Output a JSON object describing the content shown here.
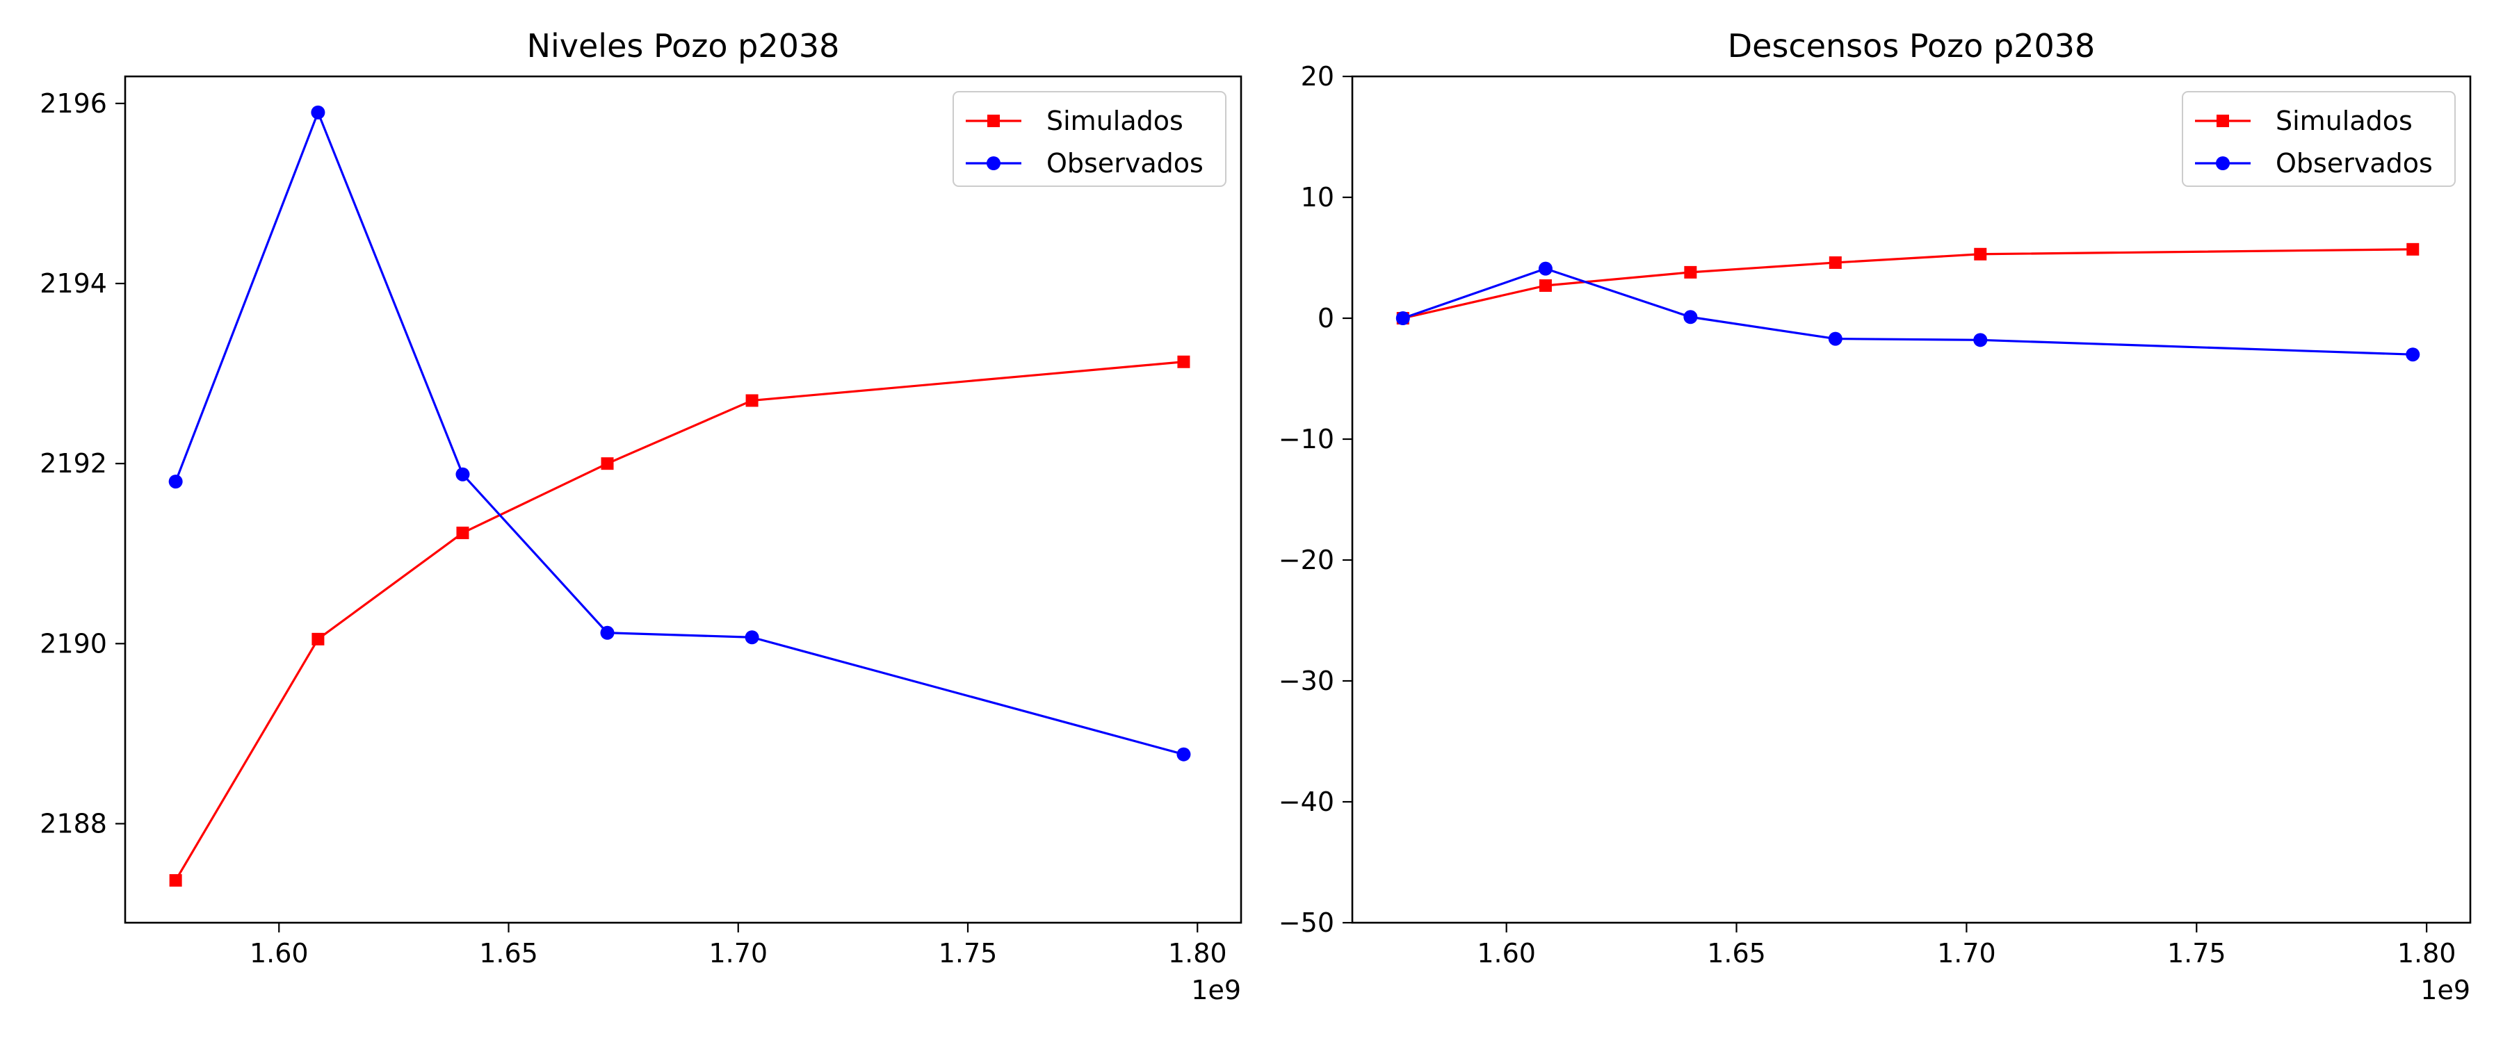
{
  "chart_data": [
    {
      "type": "line",
      "title": "Niveles Pozo p2038",
      "xlabel": "",
      "ylabel": "",
      "x_offset_label": "1e9",
      "xlim": [
        1.5665,
        1.8095
      ],
      "ylim": [
        2186.9,
        2196.3
      ],
      "x_ticks": [
        1.6,
        1.65,
        1.7,
        1.75,
        1.8
      ],
      "x_tick_labels": [
        "1.60",
        "1.65",
        "1.70",
        "1.75",
        "1.80"
      ],
      "y_ticks": [
        2188,
        2190,
        2192,
        2194,
        2196
      ],
      "y_tick_labels": [
        "2188",
        "2190",
        "2192",
        "2194",
        "2196"
      ],
      "grid": false,
      "legend_position": "upper right",
      "x": [
        1.5775,
        1.6085,
        1.64,
        1.6715,
        1.703,
        1.797
      ],
      "series": [
        {
          "name": "Simulados",
          "color": "#ff0000",
          "marker": "square",
          "values": [
            2187.37,
            2190.05,
            2191.23,
            2192.0,
            2192.7,
            2193.13
          ]
        },
        {
          "name": "Observados",
          "color": "#0000ff",
          "marker": "circle",
          "values": [
            2191.8,
            2195.9,
            2191.88,
            2190.12,
            2190.07,
            2188.77
          ]
        }
      ]
    },
    {
      "type": "line",
      "title": "Descensos Pozo p2038",
      "xlabel": "",
      "ylabel": "",
      "x_offset_label": "1e9",
      "xlim": [
        1.5665,
        1.8095
      ],
      "ylim": [
        -50,
        20
      ],
      "x_ticks": [
        1.6,
        1.65,
        1.7,
        1.75,
        1.8
      ],
      "x_tick_labels": [
        "1.60",
        "1.65",
        "1.70",
        "1.75",
        "1.80"
      ],
      "y_ticks": [
        -50,
        -40,
        -30,
        -20,
        -10,
        0,
        10,
        20
      ],
      "y_tick_labels": [
        "−50",
        "−40",
        "−30",
        "−20",
        "−10",
        "0",
        "10",
        "20"
      ],
      "grid": false,
      "legend_position": "upper right",
      "x": [
        1.5775,
        1.6085,
        1.64,
        1.6715,
        1.703,
        1.797
      ],
      "series": [
        {
          "name": "Simulados",
          "color": "#ff0000",
          "marker": "square",
          "values": [
            0.0,
            2.7,
            3.8,
            4.6,
            5.3,
            5.7
          ]
        },
        {
          "name": "Observados",
          "color": "#0000ff",
          "marker": "circle",
          "values": [
            0.0,
            4.1,
            0.1,
            -1.7,
            -1.8,
            -3.0
          ]
        }
      ]
    }
  ]
}
